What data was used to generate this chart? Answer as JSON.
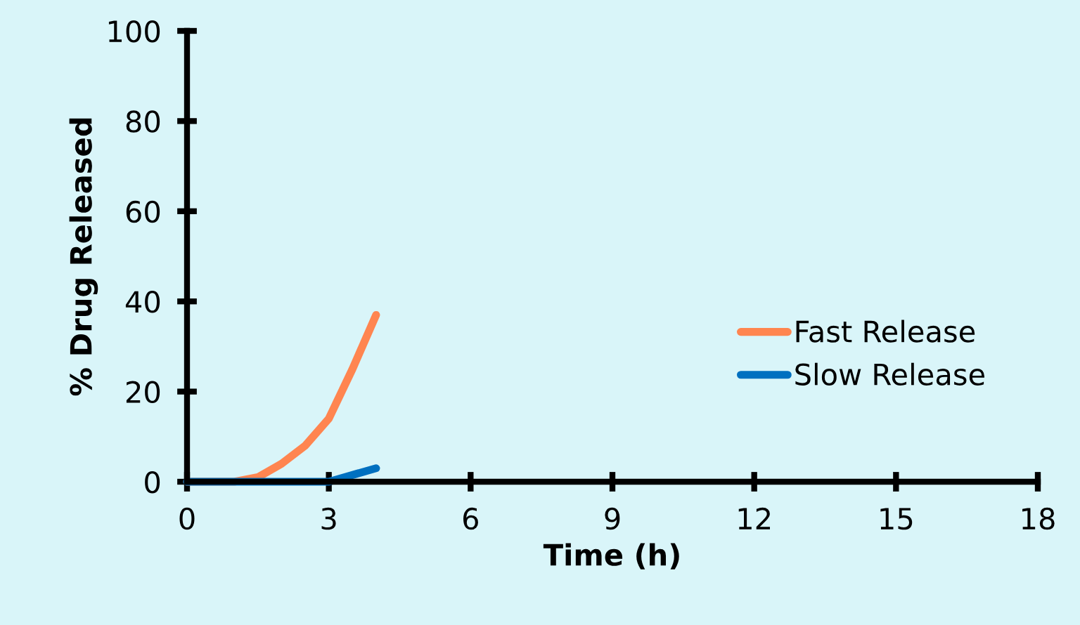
{
  "chart_data": {
    "type": "line",
    "xlabel": "Time (h)",
    "ylabel": "% Drug Released",
    "x": [
      0,
      1,
      1.5,
      2,
      2.5,
      3,
      3.5,
      4
    ],
    "series": [
      {
        "name": "Fast Release",
        "color": "#ff8550",
        "values": [
          0,
          0,
          1,
          4,
          8,
          14,
          25,
          37
        ]
      },
      {
        "name": "Slow Release",
        "color": "#0070c0",
        "values": [
          0,
          0,
          0,
          0,
          0,
          0,
          1.5,
          3
        ]
      }
    ],
    "xlim": [
      0,
      18
    ],
    "xticks": [
      0,
      3,
      6,
      9,
      12,
      15,
      18
    ],
    "ylim": [
      0,
      100
    ],
    "yticks": [
      0,
      20,
      40,
      60,
      80,
      100
    ],
    "grid": false,
    "legend": "right",
    "marker": "none",
    "line_style": "solid"
  }
}
